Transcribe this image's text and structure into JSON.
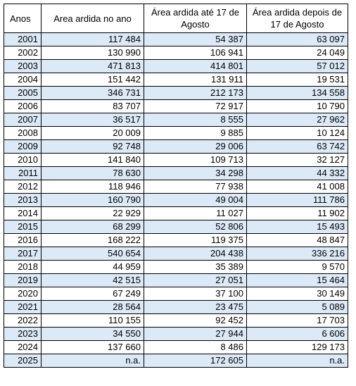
{
  "table": {
    "headers": {
      "year": "Anos",
      "total": "Area ardida no ano",
      "until": "Área ardida até 17 de Agosto",
      "after": "Área ardida depois de 17 de Agosto"
    },
    "rows": [
      {
        "year": "2001",
        "total": "117 484",
        "until": "54 387",
        "after": "63 097"
      },
      {
        "year": "2002",
        "total": "130 990",
        "until": "106 941",
        "after": "24 049"
      },
      {
        "year": "2003",
        "total": "471 813",
        "until": "414 801",
        "after": "57 012"
      },
      {
        "year": "2004",
        "total": "151 442",
        "until": "131 911",
        "after": "19 531"
      },
      {
        "year": "2005",
        "total": "346 731",
        "until": "212 173",
        "after": "134 558"
      },
      {
        "year": "2006",
        "total": "83 707",
        "until": "72 917",
        "after": "10 790"
      },
      {
        "year": "2007",
        "total": "36 517",
        "until": "8 555",
        "after": "27 962"
      },
      {
        "year": "2008",
        "total": "20 009",
        "until": "9 885",
        "after": "10 124"
      },
      {
        "year": "2009",
        "total": "92 748",
        "until": "29 006",
        "after": "63 742"
      },
      {
        "year": "2010",
        "total": "141 840",
        "until": "109 713",
        "after": "32 127"
      },
      {
        "year": "2011",
        "total": "78 630",
        "until": "34 298",
        "after": "44 332"
      },
      {
        "year": "2012",
        "total": "118 946",
        "until": "77 938",
        "after": "41 008"
      },
      {
        "year": "2013",
        "total": "160 790",
        "until": "49 004",
        "after": "111 786"
      },
      {
        "year": "2014",
        "total": "22 929",
        "until": "11 027",
        "after": "11 902"
      },
      {
        "year": "2015",
        "total": "68 299",
        "until": "52 806",
        "after": "15 493"
      },
      {
        "year": "2016",
        "total": "168 222",
        "until": "119 375",
        "after": "48 847"
      },
      {
        "year": "2017",
        "total": "540 654",
        "until": "204 438",
        "after": "336 216"
      },
      {
        "year": "2018",
        "total": "44 959",
        "until": "35 389",
        "after": "9 570"
      },
      {
        "year": "2019",
        "total": "42 515",
        "until": "27 051",
        "after": "15 464"
      },
      {
        "year": "2020",
        "total": "67 249",
        "until": "37 100",
        "after": "30 149"
      },
      {
        "year": "2021",
        "total": "28 564",
        "until": "23 475",
        "after": "5 089"
      },
      {
        "year": "2022",
        "total": "110 155",
        "until": "92 452",
        "after": "17 703"
      },
      {
        "year": "2023",
        "total": "34 550",
        "until": "27 944",
        "after": "6 606"
      },
      {
        "year": "2024",
        "total": "137 660",
        "until": "8 486",
        "after": "129 173"
      },
      {
        "year": "2025",
        "total": "n.a.",
        "until": "172 605",
        "after": "n.a."
      }
    ]
  },
  "colors": {
    "band": "#dce9f7",
    "border": "#000000"
  }
}
